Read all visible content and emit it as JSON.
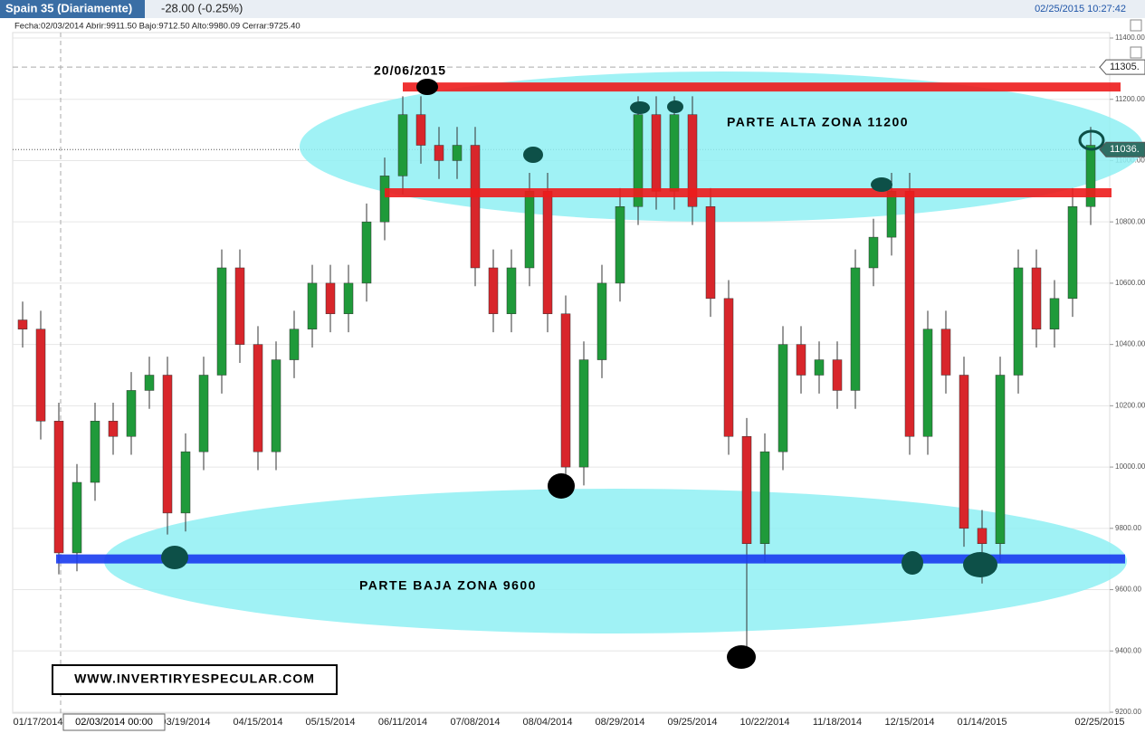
{
  "header": {
    "symbol": "Spain 35 (Diariamente)",
    "change": "-28.00 (-0.25%)",
    "timestamp": "02/25/2015 10:27:42",
    "info": "Fecha:02/03/2014 Abrir:9911.50 Bajo:9712.50 Alto:9980.09 Cerrar:9725.40",
    "crosshair_label": "02/03/2014 00:00"
  },
  "chart_data": {
    "type": "candlestick",
    "x_labels": [
      "01/17/2014",
      "03/19/2014",
      "04/15/2014",
      "05/15/2014",
      "06/11/2014",
      "07/08/2014",
      "08/04/2014",
      "08/29/2014",
      "09/25/2014",
      "10/22/2014",
      "11/18/2014",
      "12/15/2014",
      "01/14/2015",
      "02/25/2015"
    ],
    "open": [
      10480,
      10450,
      10150,
      9720,
      9950,
      10150,
      10100,
      10250,
      10300,
      9850,
      10050,
      10300,
      10650,
      10400,
      10050,
      10350,
      10450,
      10600,
      10500,
      10600,
      10800,
      10950,
      11150,
      11050,
      11000,
      11050,
      10650,
      10500,
      10650,
      10900,
      10500,
      10000,
      10350,
      10600,
      10850,
      11150,
      10900,
      11150,
      10850,
      10550,
      10100,
      9750,
      10050,
      10400,
      10300,
      10350,
      10250,
      10650,
      10750,
      10900,
      10100,
      10450,
      10300,
      9800,
      9750,
      10300,
      10650,
      10450,
      10550,
      10850
    ],
    "high": [
      10540,
      10510,
      10210,
      10010,
      10210,
      10210,
      10310,
      10360,
      10360,
      10110,
      10360,
      10710,
      10710,
      10460,
      10410,
      10510,
      10660,
      10660,
      10660,
      10860,
      11010,
      11210,
      11210,
      11110,
      11110,
      11110,
      10710,
      10710,
      10960,
      10960,
      10560,
      10410,
      10660,
      10910,
      11210,
      11210,
      11210,
      11210,
      10910,
      10610,
      10160,
      10110,
      10460,
      10460,
      10410,
      10410,
      10710,
      10810,
      10960,
      10960,
      10510,
      10510,
      10360,
      9860,
      10360,
      10710,
      10710,
      10610,
      10910,
      11110
    ],
    "low": [
      10390,
      10090,
      9650,
      9660,
      9890,
      10040,
      10040,
      10190,
      9780,
      9790,
      9990,
      10240,
      10340,
      9990,
      9990,
      10290,
      10390,
      10440,
      10440,
      10540,
      10740,
      10890,
      10990,
      10940,
      10940,
      10590,
      10440,
      10440,
      10590,
      10440,
      9940,
      9940,
      10290,
      10540,
      10790,
      10840,
      10840,
      10790,
      10490,
      10040,
      9400,
      9690,
      9990,
      10240,
      10240,
      10190,
      10190,
      10590,
      10690,
      10040,
      10040,
      10240,
      9740,
      9620,
      9690,
      10240,
      10390,
      10390,
      10490,
      10790
    ],
    "close": [
      10450,
      10150,
      9720,
      9950,
      10150,
      10100,
      10250,
      10300,
      9850,
      10050,
      10300,
      10650,
      10400,
      10050,
      10350,
      10450,
      10600,
      10500,
      10600,
      10800,
      10950,
      11150,
      11050,
      11000,
      11050,
      10650,
      10500,
      10650,
      10900,
      10500,
      10000,
      10350,
      10600,
      10850,
      11150,
      10900,
      11150,
      10850,
      10550,
      10100,
      9750,
      10050,
      10400,
      10300,
      10350,
      10250,
      10650,
      10750,
      10900,
      10100,
      10450,
      10300,
      9800,
      9750,
      10300,
      10650,
      10450,
      10550,
      10850,
      11050
    ],
    "up_color": "#1f9a3a",
    "down_color": "#d8262b",
    "ylim": [
      9200,
      11400
    ],
    "yticks": [
      {
        "value": 9200,
        "label": "9200.00"
      },
      {
        "value": 9400,
        "label": "9400.00"
      },
      {
        "value": 9600,
        "label": "9600.00"
      },
      {
        "value": 9800,
        "label": "9800.00"
      },
      {
        "value": 10000,
        "label": "10000.00"
      },
      {
        "value": 10200,
        "label": "10200.00"
      },
      {
        "value": 10400,
        "label": "10400.00"
      },
      {
        "value": 10600,
        "label": "10600.00"
      },
      {
        "value": 10800,
        "label": "10800.00"
      },
      {
        "value": 11000,
        "label": "11000.00"
      },
      {
        "value": 11200,
        "label": "11200.00"
      },
      {
        "value": 11400,
        "label": "11400.00"
      }
    ],
    "grid": true,
    "price_tags": [
      {
        "value": 11305,
        "label": "11305."
      },
      {
        "value": 11036,
        "label": "11036."
      }
    ],
    "levels": [
      {
        "value": 11240,
        "color": "#ee1c1c"
      },
      {
        "value": 10895,
        "color": "#ee1c1c"
      },
      {
        "value": 9700,
        "color": "#1a3cf0"
      }
    ],
    "annotations": {
      "date": "20/06/2015",
      "upper_zone": "PARTE ALTA ZONA 11200",
      "lower_zone": "PARTE BAJA ZONA 9600",
      "website": "WWW.INVERTIRYESPECULAR.COM"
    }
  }
}
